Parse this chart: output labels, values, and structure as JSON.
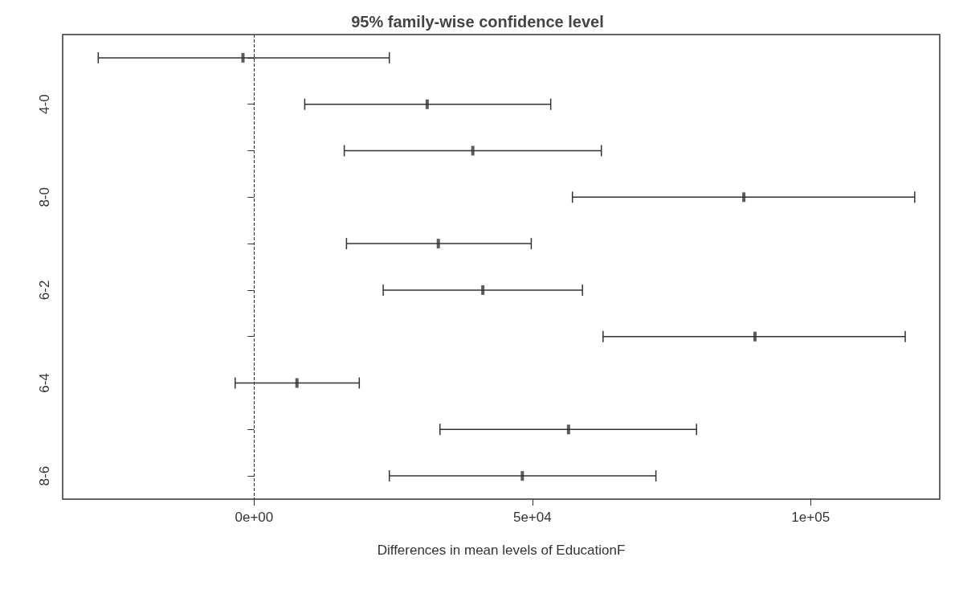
{
  "chart_data": {
    "type": "scatter",
    "orientation": "horizontal",
    "title": "95% family-wise confidence level",
    "xlabel": "Differences in mean levels of EducationF",
    "categories": [
      null,
      "4-0",
      null,
      "8-0",
      null,
      "6-2",
      null,
      "6-4",
      null,
      "8-6"
    ],
    "values": [
      -2000,
      31100,
      39300,
      88000,
      33100,
      41100,
      90000,
      7700,
      56500,
      48200
    ],
    "errors": [
      [
        -28000,
        24300
      ],
      [
        9100,
        53300
      ],
      [
        16200,
        62400
      ],
      [
        57200,
        118700
      ],
      [
        16600,
        49800
      ],
      [
        23200,
        59000
      ],
      [
        62700,
        117000
      ],
      [
        -3400,
        18900
      ],
      [
        33400,
        79500
      ],
      [
        24300,
        72200
      ]
    ],
    "color": "#333333",
    "xlim": [
      -34400,
      123200
    ],
    "xticks": [
      {
        "value": 0,
        "label": "0e+00"
      },
      {
        "value": 50000,
        "label": "5e+04"
      },
      {
        "value": 100000,
        "label": "1e+05"
      }
    ],
    "ref_lines": [
      {
        "axis": "x",
        "value": 0,
        "label": null,
        "line_style": "dashed"
      }
    ],
    "grid": false,
    "legend": false
  }
}
